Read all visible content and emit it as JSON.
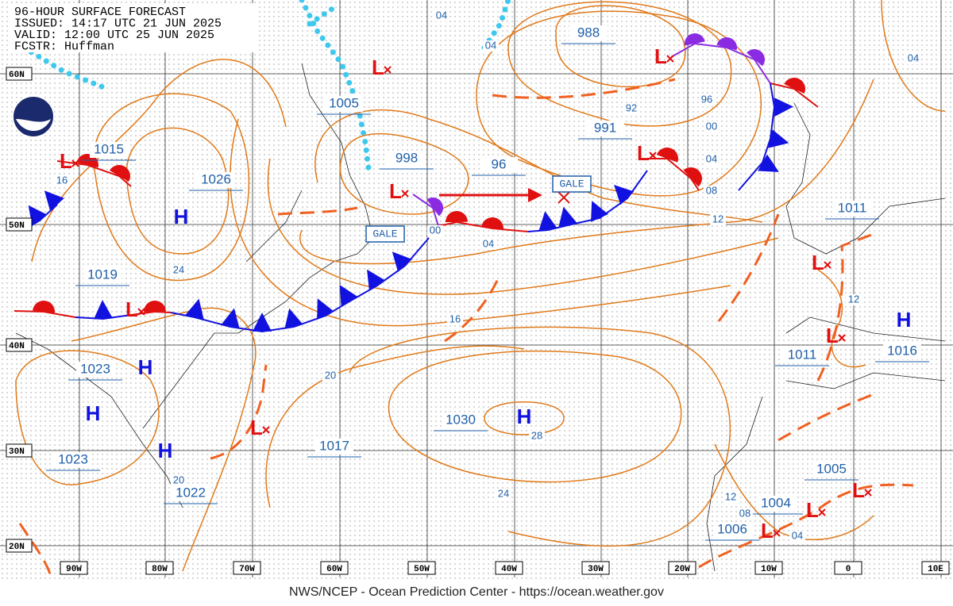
{
  "header": {
    "lines": [
      "96-HOUR SURFACE FORECAST",
      "ISSUED: 14:17 UTC 21 JUN 2025",
      "VALID:  12:00 UTC 25 JUN 2025",
      "FCSTR:  Huffman"
    ]
  },
  "latitudes": [
    "60N",
    "50N",
    "40N",
    "30N",
    "20N"
  ],
  "longitudes": [
    "90W",
    "80W",
    "70W",
    "60W",
    "50W",
    "40W",
    "30W",
    "20W",
    "10W",
    "0",
    "10E"
  ],
  "highs": [
    "H",
    "H",
    "H",
    "H",
    "H",
    "H"
  ],
  "lows": [
    "L",
    "L",
    "L",
    "L",
    "L",
    "L",
    "L",
    "L",
    "L",
    "L",
    "L",
    "L"
  ],
  "pressures": [
    "988",
    "1005",
    "991",
    "998",
    "96",
    "1015",
    "1026",
    "1019",
    "1023",
    "1023",
    "1030",
    "1017",
    "1022",
    "1011",
    "1011",
    "1016",
    "1005",
    "1004",
    "1006"
  ],
  "isobar_labels": [
    "04",
    "04",
    "04",
    "92",
    "96",
    "00",
    "04",
    "08",
    "12",
    "16",
    "00",
    "04",
    "24",
    "16",
    "12",
    "20",
    "28",
    "24",
    "20",
    "12",
    "08",
    "04"
  ],
  "warnings": [
    "GALE",
    "GALE"
  ],
  "footer": "NWS/NCEP - Ocean Prediction Center - https://ocean.weather.gov"
}
